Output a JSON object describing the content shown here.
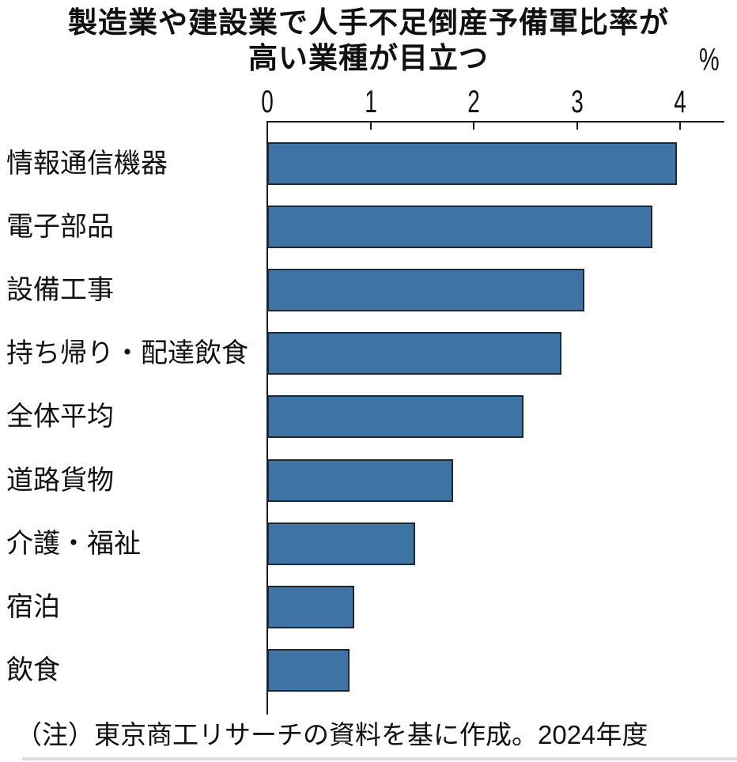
{
  "title": {
    "line1": "製造業や建設業で人手不足倒産予備軍比率が",
    "line2": "高い業種が目立つ"
  },
  "footnote": "（注）東京商工リサーチの資料を基に作成。2024年度",
  "chart_data": {
    "type": "bar",
    "orientation": "horizontal",
    "title": "製造業や建設業で人手不足倒産予備軍比率が高い業種が目立つ",
    "unit": "%",
    "categories": [
      "情報通信機器",
      "電子部品",
      "設備工事",
      "持ち帰り・配達飲食",
      "全体平均",
      "道路貨物",
      "介護・福祉",
      "宿泊",
      "飲食"
    ],
    "values": [
      3.97,
      3.73,
      3.07,
      2.85,
      2.48,
      1.8,
      1.43,
      0.84,
      0.8
    ],
    "x_ticks": [
      0,
      1,
      2,
      3,
      4
    ],
    "xlim": [
      0,
      4.43
    ],
    "grid": false,
    "legend": "none",
    "bar_color": "#3E74A5",
    "bar_border_color": "#1E2936",
    "axis_color": "#1A1A1A",
    "text_color": "#111111"
  }
}
